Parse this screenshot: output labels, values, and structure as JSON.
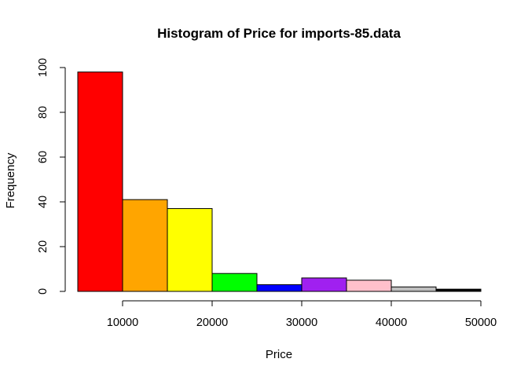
{
  "chart_data": {
    "type": "bar",
    "title": "Histogram of Price for imports-85.data",
    "xlabel": "Price",
    "ylabel": "Frequency",
    "bins": [
      {
        "start": 5000,
        "end": 10000,
        "count": 98,
        "color": "#ff0000"
      },
      {
        "start": 10000,
        "end": 15000,
        "count": 41,
        "color": "#ffa500"
      },
      {
        "start": 15000,
        "end": 20000,
        "count": 37,
        "color": "#ffff00"
      },
      {
        "start": 20000,
        "end": 25000,
        "count": 8,
        "color": "#00ff00"
      },
      {
        "start": 25000,
        "end": 30000,
        "count": 3,
        "color": "#0000ff"
      },
      {
        "start": 30000,
        "end": 35000,
        "count": 6,
        "color": "#a020f0"
      },
      {
        "start": 35000,
        "end": 40000,
        "count": 5,
        "color": "#ffc0cb"
      },
      {
        "start": 40000,
        "end": 45000,
        "count": 2,
        "color": "#bebebe"
      },
      {
        "start": 45000,
        "end": 50000,
        "count": 1,
        "color": "#000000"
      }
    ],
    "xlim": [
      5000,
      50000
    ],
    "ylim": [
      0,
      100
    ],
    "xticks": [
      "10000",
      "20000",
      "30000",
      "40000",
      "50000"
    ],
    "yticks": [
      "0",
      "20",
      "40",
      "60",
      "80",
      "100"
    ],
    "grid": false,
    "legend": "none"
  }
}
